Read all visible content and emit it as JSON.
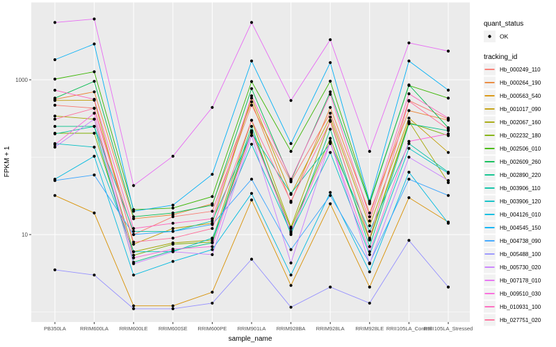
{
  "figure": {
    "background": "#FFFFFF",
    "panel_background": "#EBEBEB",
    "grid_color": "#FFFFFF",
    "axis_text_color": "#4D4D4D",
    "tick_color": "#333333",
    "point_color": "#000000",
    "legend_key_background": "#F2F2F2"
  },
  "axes": {
    "x_title": "sample_name",
    "y_title": "FPKM + 1"
  },
  "legend": {
    "quant_status_title": "quant_status",
    "quant_status_items": [
      {
        "label": "OK",
        "symbol": "point"
      }
    ],
    "tracking_id_title": "tracking_id"
  },
  "chart_data": {
    "type": "line",
    "x_type": "categorical",
    "title": "",
    "xlabel": "sample_name",
    "ylabel": "FPKM + 1",
    "y_scale": "log10",
    "y_ticks": [
      10,
      1000
    ],
    "y_minor_gridlines": [
      1,
      100,
      10000
    ],
    "ylim": [
      0.75,
      10000
    ],
    "grid": true,
    "legend_position": "right",
    "categories": [
      "PB350LA",
      "RRIM600LA",
      "RRIM600LE",
      "RRIM600SE",
      "RRIM600PE",
      "RRIM901LA",
      "RRIM928BA",
      "RRIM928LA",
      "RRIM928LE",
      "RRII105LA_Control",
      "RRII105LA_Stressed"
    ],
    "series": [
      {
        "name": "Hb_000249_110",
        "color": "#F8766D",
        "values": [
          470,
          430,
          10,
          17,
          20,
          470,
          48,
          370,
          15,
          540,
          310
        ]
      },
      {
        "name": "Hb_000264_190",
        "color": "#EA8331",
        "values": [
          560,
          700,
          16,
          18,
          25,
          520,
          26,
          440,
          19,
          400,
          300
        ]
      },
      {
        "name": "Hb_000563_540",
        "color": "#D89000",
        "values": [
          32,
          19,
          1.2,
          1.2,
          1.8,
          28,
          2.2,
          25,
          2.1,
          30,
          14.5
        ]
      },
      {
        "name": "Hb_001017_090",
        "color": "#C09B00",
        "values": [
          540,
          545,
          7.5,
          12,
          14,
          580,
          33,
          330,
          13,
          320,
          115
        ]
      },
      {
        "name": "Hb_002067_160",
        "color": "#A3A500",
        "values": [
          340,
          310,
          6,
          7.8,
          8.5,
          300,
          12.5,
          300,
          8.7,
          290,
          47
        ]
      },
      {
        "name": "Hb_002232_180",
        "color": "#7CAE00",
        "values": [
          204,
          204,
          5.4,
          7.5,
          8,
          220,
          12,
          175,
          8.5,
          280,
          190
        ]
      },
      {
        "name": "Hb_002506_010",
        "color": "#39B600",
        "values": [
          1020,
          1270,
          21,
          22,
          31,
          950,
          119,
          960,
          26,
          845,
          580
        ]
      },
      {
        "name": "Hb_002609_260",
        "color": "#00BB4E",
        "values": [
          580,
          955,
          17,
          19,
          24,
          770,
          50,
          700,
          25,
          860,
          240
        ]
      },
      {
        "name": "Hb_002890_220",
        "color": "#00C087",
        "values": [
          250,
          250,
          4.4,
          6.2,
          7.8,
          250,
          10,
          230,
          7,
          270,
          220
        ]
      },
      {
        "name": "Hb_003906_110",
        "color": "#00C1A3",
        "values": [
          200,
          250,
          11,
          11,
          15,
          206,
          34,
          150,
          11,
          150,
          64
        ]
      },
      {
        "name": "Hb_003906_120",
        "color": "#00BFC4",
        "values": [
          150,
          135,
          6,
          6,
          9,
          147,
          10.5,
          115,
          5.5,
          130,
          62
        ]
      },
      {
        "name": "Hb_004126_010",
        "color": "#00BAE0",
        "values": [
          52,
          103,
          3,
          4.5,
          6.4,
          34,
          3,
          35,
          3.3,
          64,
          14
        ]
      },
      {
        "name": "Hb_004545_150",
        "color": "#00B0F6",
        "values": [
          1820,
          2900,
          20,
          24,
          60,
          1750,
          150,
          1670,
          27,
          1750,
          735
        ]
      },
      {
        "name": "Hb_004738_090",
        "color": "#35A2FF",
        "values": [
          50,
          59,
          10,
          11,
          13.5,
          52,
          6.4,
          32,
          4.3,
          52,
          32
        ]
      },
      {
        "name": "Hb_005488_100",
        "color": "#9590FF",
        "values": [
          3.5,
          3,
          1.1,
          1.1,
          1.3,
          4.8,
          1.15,
          2.1,
          1.3,
          8.4,
          2.1
        ]
      },
      {
        "name": "Hb_005730_020",
        "color": "#C77CFF",
        "values": [
          135,
          310,
          4.2,
          6,
          5.5,
          190,
          4.3,
          160,
          4.2,
          100,
          50
        ]
      },
      {
        "name": "Hb_007178_010",
        "color": "#E76BF3",
        "values": [
          5500,
          6100,
          43,
          103,
          440,
          5500,
          540,
          3300,
          119,
          3000,
          2350
        ]
      },
      {
        "name": "Hb_009510_030",
        "color": "#FA62DB",
        "values": [
          145,
          370,
          5,
          6.5,
          7,
          210,
          11,
          155,
          6,
          160,
          200
        ]
      },
      {
        "name": "Hb_010931_100",
        "color": "#FF62BC",
        "values": [
          734,
          560,
          12,
          14,
          16,
          620,
          52,
          650,
          17,
          660,
          320
        ]
      },
      {
        "name": "Hb_027751_020",
        "color": "#FF6A98",
        "values": [
          310,
          428,
          8,
          9,
          12,
          300,
          27,
          290,
          9,
          530,
          230
        ]
      }
    ]
  }
}
